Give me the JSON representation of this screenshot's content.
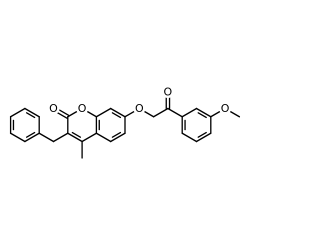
{
  "atoms": [
    {
      "label": "O"
    },
    {
      "label": "O"
    },
    {
      "label": "O"
    },
    {
      "label": "O"
    },
    {
      "label": "O"
    }
  ]
}
